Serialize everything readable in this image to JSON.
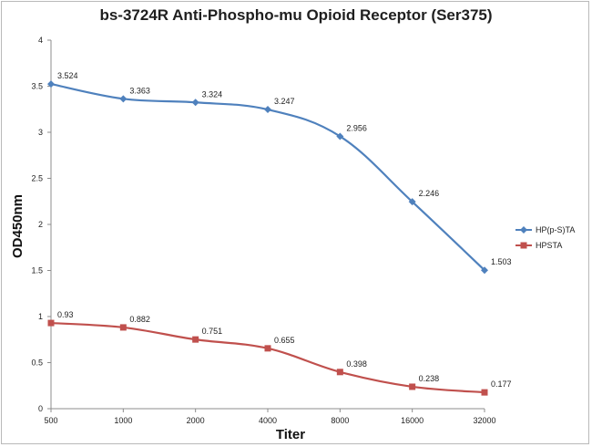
{
  "chart_data": {
    "type": "line",
    "title": "bs-3724R Anti-Phospho-mu Opioid Receptor (Ser375)",
    "xlabel": "Titer",
    "ylabel": "OD450nm",
    "categories": [
      "500",
      "1000",
      "2000",
      "4000",
      "8000",
      "16000",
      "32000"
    ],
    "ylim": [
      0,
      4
    ],
    "yticks": [
      "0",
      "0.5",
      "1",
      "1.5",
      "2",
      "2.5",
      "3",
      "3.5",
      "4"
    ],
    "grid": false,
    "legend_position": "right",
    "series": [
      {
        "name": "HP(p-S)TA",
        "color": "#4f81bd",
        "marker": "diamond",
        "values": [
          3.524,
          3.363,
          3.324,
          3.247,
          2.956,
          2.246,
          1.503
        ],
        "labels": [
          "3.524",
          "3.363",
          "3.324",
          "3.247",
          "2.956",
          "2.246",
          "1.503"
        ]
      },
      {
        "name": "HPSTA",
        "color": "#c0504d",
        "marker": "square",
        "values": [
          0.93,
          0.882,
          0.751,
          0.655,
          0.398,
          0.238,
          0.177
        ],
        "labels": [
          "0.93",
          "0.882",
          "0.751",
          "0.655",
          "0.398",
          "0.238",
          "0.177"
        ]
      }
    ]
  }
}
